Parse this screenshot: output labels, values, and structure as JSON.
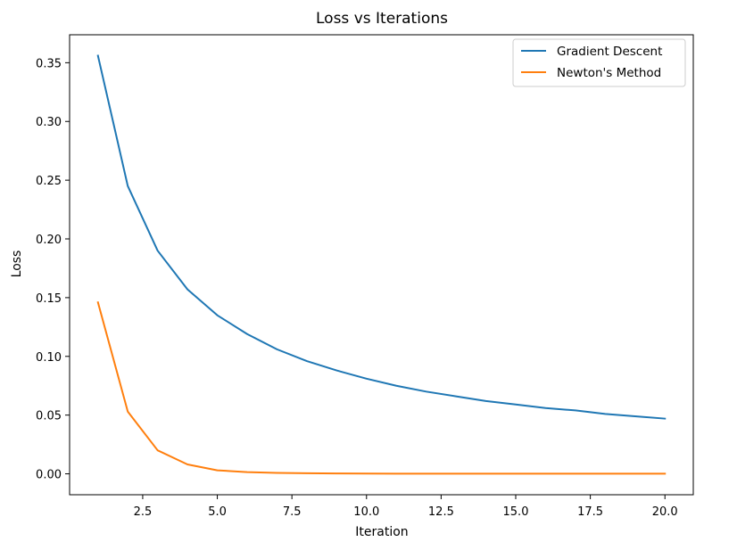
{
  "chart_data": {
    "type": "line",
    "title": "Loss vs Iterations",
    "xlabel": "Iteration",
    "ylabel": "Loss",
    "xlim": [
      0.05,
      20.95
    ],
    "ylim": [
      -0.0178,
      0.3738
    ],
    "x": [
      1,
      2,
      3,
      4,
      5,
      6,
      7,
      8,
      9,
      10,
      11,
      12,
      13,
      14,
      15,
      16,
      17,
      18,
      19,
      20
    ],
    "x_ticks": [
      2.5,
      5.0,
      7.5,
      10.0,
      12.5,
      15.0,
      17.5,
      20.0
    ],
    "x_tick_labels": [
      "2.5",
      "5.0",
      "7.5",
      "10.0",
      "12.5",
      "15.0",
      "17.5",
      "20.0"
    ],
    "y_ticks": [
      0.0,
      0.05,
      0.1,
      0.15,
      0.2,
      0.25,
      0.3,
      0.35
    ],
    "y_tick_labels": [
      "0.00",
      "0.05",
      "0.10",
      "0.15",
      "0.20",
      "0.25",
      "0.30",
      "0.35"
    ],
    "grid": false,
    "legend_position": "top-right",
    "series": [
      {
        "name": "Gradient Descent",
        "color": "#1f77b4",
        "values": [
          0.356,
          0.245,
          0.19,
          0.157,
          0.135,
          0.119,
          0.106,
          0.096,
          0.088,
          0.081,
          0.075,
          0.07,
          0.066,
          0.062,
          0.059,
          0.056,
          0.054,
          0.051,
          0.049,
          0.047
        ]
      },
      {
        "name": "Newton's Method",
        "color": "#ff7f0e",
        "values": [
          0.146,
          0.053,
          0.02,
          0.008,
          0.003,
          0.0015,
          0.0008,
          0.0005,
          0.0003,
          0.0002,
          0.0001,
          0.0001,
          0.0001,
          0.0001,
          0.0001,
          0.0001,
          0.0001,
          0.0001,
          0.0001,
          0.0001
        ]
      }
    ]
  }
}
